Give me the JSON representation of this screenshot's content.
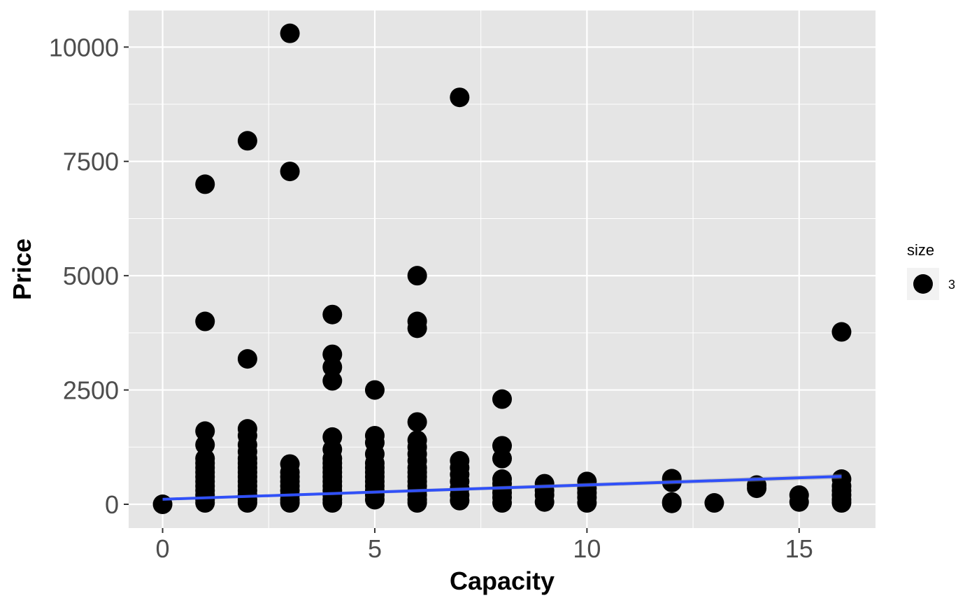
{
  "chart_data": {
    "type": "scatter",
    "title": "",
    "xlabel": "Capacity",
    "ylabel": "Price",
    "xlim": [
      -0.8,
      16.8
    ],
    "ylim": [
      -520,
      10800
    ],
    "x_ticks": [
      0,
      5,
      10,
      15
    ],
    "x_tick_labels": [
      "0",
      "5",
      "10",
      "15"
    ],
    "y_ticks": [
      0,
      2500,
      5000,
      7500,
      10000
    ],
    "y_tick_labels": [
      "0",
      "2500",
      "5000",
      "7500",
      "10000"
    ],
    "grid": true,
    "point_color": "#000000",
    "trend_color": "#3050f8",
    "panel_color": "#e5e5e5",
    "grid_color": "#ffffff",
    "legend": {
      "position": "right",
      "title": "size",
      "entries": [
        {
          "label": "3"
        }
      ]
    },
    "trend_line": {
      "method": "linear",
      "x": [
        0,
        16
      ],
      "y": [
        110,
        610
      ]
    },
    "points": [
      {
        "x": 0,
        "y": 0
      },
      {
        "x": 1,
        "y": 7000
      },
      {
        "x": 1,
        "y": 4000
      },
      {
        "x": 1,
        "y": 1600
      },
      {
        "x": 1,
        "y": 1300
      },
      {
        "x": 1,
        "y": 1000
      },
      {
        "x": 1,
        "y": 900
      },
      {
        "x": 1,
        "y": 800
      },
      {
        "x": 1,
        "y": 700
      },
      {
        "x": 1,
        "y": 600
      },
      {
        "x": 1,
        "y": 500
      },
      {
        "x": 1,
        "y": 400
      },
      {
        "x": 1,
        "y": 300
      },
      {
        "x": 1,
        "y": 200
      },
      {
        "x": 1,
        "y": 100
      },
      {
        "x": 1,
        "y": 30
      },
      {
        "x": 2,
        "y": 7950
      },
      {
        "x": 2,
        "y": 3180
      },
      {
        "x": 2,
        "y": 1650
      },
      {
        "x": 2,
        "y": 1500
      },
      {
        "x": 2,
        "y": 1300
      },
      {
        "x": 2,
        "y": 1150
      },
      {
        "x": 2,
        "y": 1000
      },
      {
        "x": 2,
        "y": 900
      },
      {
        "x": 2,
        "y": 800
      },
      {
        "x": 2,
        "y": 700
      },
      {
        "x": 2,
        "y": 600
      },
      {
        "x": 2,
        "y": 500
      },
      {
        "x": 2,
        "y": 400
      },
      {
        "x": 2,
        "y": 300
      },
      {
        "x": 2,
        "y": 200
      },
      {
        "x": 2,
        "y": 100
      },
      {
        "x": 2,
        "y": 30
      },
      {
        "x": 3,
        "y": 10300
      },
      {
        "x": 3,
        "y": 7280
      },
      {
        "x": 3,
        "y": 880
      },
      {
        "x": 3,
        "y": 700
      },
      {
        "x": 3,
        "y": 600
      },
      {
        "x": 3,
        "y": 500
      },
      {
        "x": 3,
        "y": 400
      },
      {
        "x": 3,
        "y": 300
      },
      {
        "x": 3,
        "y": 200
      },
      {
        "x": 3,
        "y": 100
      },
      {
        "x": 3,
        "y": 30
      },
      {
        "x": 4,
        "y": 4150
      },
      {
        "x": 4,
        "y": 3280
      },
      {
        "x": 4,
        "y": 3000
      },
      {
        "x": 4,
        "y": 2700
      },
      {
        "x": 4,
        "y": 1470
      },
      {
        "x": 4,
        "y": 1200
      },
      {
        "x": 4,
        "y": 1000
      },
      {
        "x": 4,
        "y": 900
      },
      {
        "x": 4,
        "y": 800
      },
      {
        "x": 4,
        "y": 700
      },
      {
        "x": 4,
        "y": 600
      },
      {
        "x": 4,
        "y": 500
      },
      {
        "x": 4,
        "y": 400
      },
      {
        "x": 4,
        "y": 300
      },
      {
        "x": 4,
        "y": 200
      },
      {
        "x": 4,
        "y": 100
      },
      {
        "x": 4,
        "y": 30
      },
      {
        "x": 5,
        "y": 2500
      },
      {
        "x": 5,
        "y": 1500
      },
      {
        "x": 5,
        "y": 1350
      },
      {
        "x": 5,
        "y": 1100
      },
      {
        "x": 5,
        "y": 900
      },
      {
        "x": 5,
        "y": 800
      },
      {
        "x": 5,
        "y": 700
      },
      {
        "x": 5,
        "y": 600
      },
      {
        "x": 5,
        "y": 500
      },
      {
        "x": 5,
        "y": 400
      },
      {
        "x": 5,
        "y": 300
      },
      {
        "x": 5,
        "y": 200
      },
      {
        "x": 5,
        "y": 100
      },
      {
        "x": 6,
        "y": 5000
      },
      {
        "x": 6,
        "y": 4000
      },
      {
        "x": 6,
        "y": 3850
      },
      {
        "x": 6,
        "y": 1800
      },
      {
        "x": 6,
        "y": 1400
      },
      {
        "x": 6,
        "y": 1250
      },
      {
        "x": 6,
        "y": 1100
      },
      {
        "x": 6,
        "y": 950
      },
      {
        "x": 6,
        "y": 800
      },
      {
        "x": 6,
        "y": 700
      },
      {
        "x": 6,
        "y": 600
      },
      {
        "x": 6,
        "y": 500
      },
      {
        "x": 6,
        "y": 400
      },
      {
        "x": 6,
        "y": 300
      },
      {
        "x": 6,
        "y": 200
      },
      {
        "x": 6,
        "y": 100
      },
      {
        "x": 6,
        "y": 30
      },
      {
        "x": 7,
        "y": 8900
      },
      {
        "x": 7,
        "y": 950
      },
      {
        "x": 7,
        "y": 800
      },
      {
        "x": 7,
        "y": 650
      },
      {
        "x": 7,
        "y": 500
      },
      {
        "x": 7,
        "y": 350
      },
      {
        "x": 7,
        "y": 200
      },
      {
        "x": 7,
        "y": 80
      },
      {
        "x": 8,
        "y": 2300
      },
      {
        "x": 8,
        "y": 1280
      },
      {
        "x": 8,
        "y": 1000
      },
      {
        "x": 8,
        "y": 550
      },
      {
        "x": 8,
        "y": 450
      },
      {
        "x": 8,
        "y": 350
      },
      {
        "x": 8,
        "y": 250
      },
      {
        "x": 8,
        "y": 150
      },
      {
        "x": 8,
        "y": 30
      },
      {
        "x": 9,
        "y": 450
      },
      {
        "x": 9,
        "y": 300
      },
      {
        "x": 9,
        "y": 200
      },
      {
        "x": 9,
        "y": 50
      },
      {
        "x": 10,
        "y": 500
      },
      {
        "x": 10,
        "y": 350
      },
      {
        "x": 10,
        "y": 250
      },
      {
        "x": 10,
        "y": 150
      },
      {
        "x": 10,
        "y": 30
      },
      {
        "x": 12,
        "y": 560
      },
      {
        "x": 12,
        "y": 480
      },
      {
        "x": 12,
        "y": 50
      },
      {
        "x": 12,
        "y": 20
      },
      {
        "x": 13,
        "y": 30
      },
      {
        "x": 14,
        "y": 420
      },
      {
        "x": 14,
        "y": 350
      },
      {
        "x": 15,
        "y": 200
      },
      {
        "x": 15,
        "y": 50
      },
      {
        "x": 16,
        "y": 3770
      },
      {
        "x": 16,
        "y": 550
      },
      {
        "x": 16,
        "y": 400
      },
      {
        "x": 16,
        "y": 300
      },
      {
        "x": 16,
        "y": 200
      },
      {
        "x": 16,
        "y": 100
      },
      {
        "x": 16,
        "y": 30
      }
    ]
  }
}
